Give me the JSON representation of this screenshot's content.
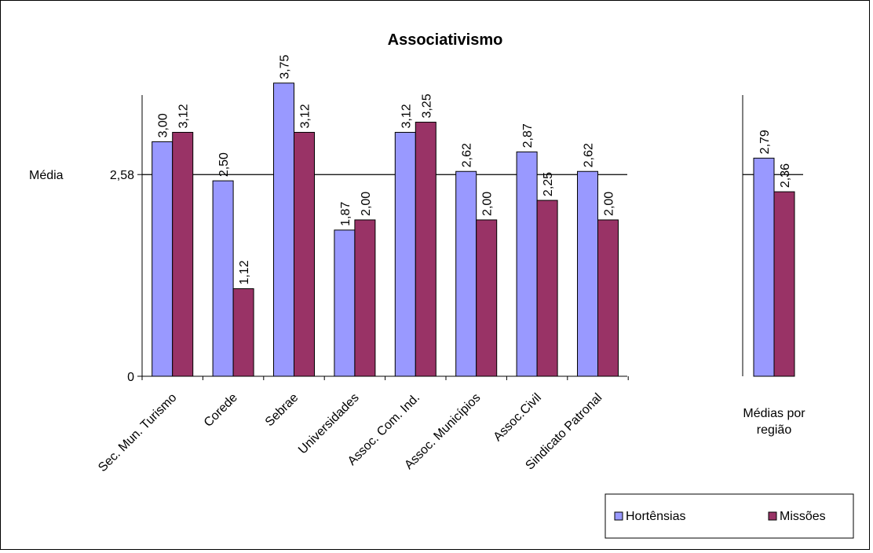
{
  "chart_data": {
    "type": "bar",
    "title": "Associativismo",
    "xlabel": "",
    "ylabel": "",
    "ylim": [
      0,
      4.25
    ],
    "yticks": [
      {
        "value": 0,
        "label": "0"
      },
      {
        "value": 2.58,
        "label": "2,58"
      }
    ],
    "reference_line": {
      "value": 2.58,
      "label": "Média"
    },
    "categories": [
      "Sec. Mun. Turismo",
      "Corede",
      "Sebrae",
      "Universidades",
      "Assoc. Com. Ind.",
      "Assoc. Municípios",
      "Assoc.Civil",
      "Sindicato Patronal"
    ],
    "series": [
      {
        "name": "Hortênsias",
        "color": "#9999ff",
        "values": [
          3.0,
          2.5,
          3.75,
          1.87,
          3.12,
          2.62,
          2.87,
          2.62
        ],
        "labels": [
          "3,00",
          "2,50",
          "3,75",
          "1,87",
          "3,12",
          "2,62",
          "2,87",
          "2,62"
        ]
      },
      {
        "name": "Missões",
        "color": "#993366",
        "values": [
          3.12,
          1.12,
          3.12,
          2.0,
          3.25,
          2.0,
          2.25,
          2.0
        ],
        "labels": [
          "3,12",
          "1,12",
          "3,12",
          "2,00",
          "3,25",
          "2,00",
          "2,25",
          "2,00"
        ]
      }
    ],
    "summary": {
      "category_lines": [
        "Médias por",
        "região"
      ],
      "values": [
        2.79,
        2.36
      ],
      "labels": [
        "2,79",
        "2,36"
      ]
    },
    "legend": {
      "position": "bottom-right",
      "entries": [
        "Hortênsias",
        "Missões"
      ]
    },
    "grid": false
  }
}
